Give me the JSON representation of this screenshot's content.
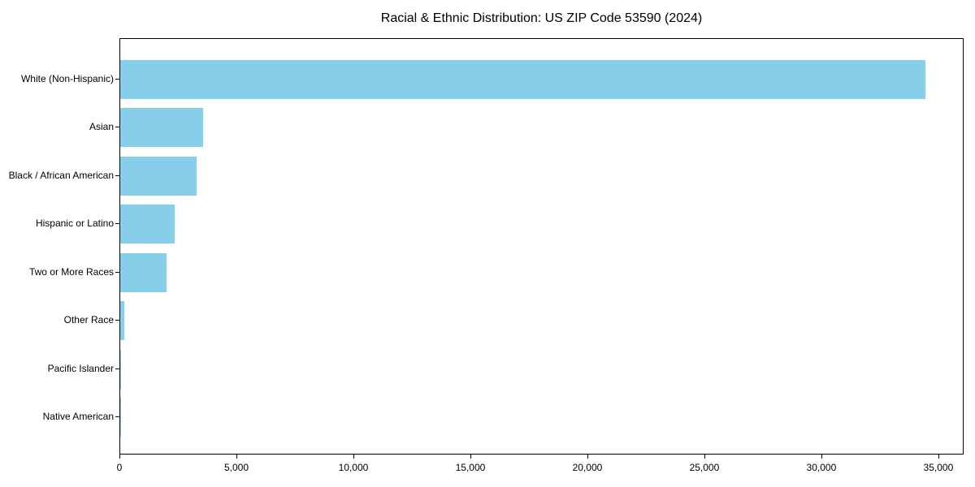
{
  "chart_data": {
    "type": "bar",
    "orientation": "horizontal",
    "title": "Racial & Ethnic Distribution: US ZIP Code 53590 (2024)",
    "categories": [
      "White (Non-Hispanic)",
      "Asian",
      "Black / African American",
      "Hispanic or Latino",
      "Two or More Races",
      "Other Race",
      "Pacific Islander",
      "Native American"
    ],
    "values": [
      34400,
      3540,
      3250,
      2330,
      1980,
      175,
      35,
      15
    ],
    "xlabel": "",
    "ylabel": "",
    "xlim": [
      0,
      36080
    ],
    "x_ticks": [
      0,
      5000,
      10000,
      15000,
      20000,
      25000,
      30000,
      35000
    ],
    "x_tick_labels": [
      "0",
      "5,000",
      "10,000",
      "15,000",
      "20,000",
      "25,000",
      "30,000",
      "35,000"
    ],
    "bar_color": "#87CEEB",
    "axis_color": "#000000",
    "text_color": "#000000",
    "background_color": "#ffffff",
    "grid": false
  }
}
